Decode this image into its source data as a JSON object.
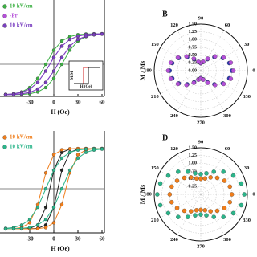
{
  "chart_data": [
    {
      "type": "line",
      "xlabel": "H (Oe)",
      "x": [
        -60,
        -50,
        -40,
        -30,
        -20,
        -10,
        0,
        10,
        20,
        30,
        40,
        50,
        60
      ],
      "xlim": [
        -67,
        63
      ],
      "ylim": [
        -1.05,
        2.1
      ],
      "xticks": [
        -30,
        0,
        30,
        60
      ],
      "series": [
        {
          "name": "10 kV/cm",
          "color": "#3cb043",
          "values": [
            -0.987,
            -0.964,
            -0.905,
            -0.762,
            -0.462,
            0,
            0.462,
            0.762,
            0.905,
            0.964,
            0.987,
            0.995,
            0.998
          ],
          "return_values": [
            -0.998,
            -0.995,
            -0.987,
            -0.964,
            -0.905,
            -0.762,
            -0.462,
            0,
            0.462,
            0.762,
            0.905,
            0.964,
            0.987
          ]
        },
        {
          "name": "-Pr",
          "color": "#b44fd8",
          "values": [
            -0.987,
            -0.967,
            -0.92,
            -0.813,
            -0.593,
            -0.223,
            0.223,
            0.593,
            0.813,
            0.92,
            0.967,
            0.987,
            0.994
          ],
          "return_values": [
            -0.994,
            -0.987,
            -0.967,
            -0.92,
            -0.813,
            -0.593,
            -0.223,
            0.223,
            0.593,
            0.813,
            0.92,
            0.967,
            0.987
          ]
        },
        {
          "name": "10 kV/cm",
          "color": "#7a3fc0",
          "values": [
            -0.987,
            -0.967,
            -0.92,
            -0.813,
            -0.593,
            -0.223,
            0.223,
            0.593,
            0.813,
            0.92,
            0.967,
            0.987,
            0.994
          ],
          "return_values": [
            -0.994,
            -0.987,
            -0.967,
            -0.92,
            -0.813,
            -0.593,
            -0.223,
            0.223,
            0.593,
            0.813,
            0.92,
            0.967,
            0.987
          ]
        }
      ],
      "inset": {
        "xlabel": "H (Oe)",
        "ylabel": "M/M"
      }
    },
    {
      "type": "polar",
      "label": "B",
      "ylabel": "M / Ms",
      "theta": [
        0,
        15,
        30,
        45,
        60,
        75,
        90,
        105,
        120,
        135,
        150,
        165,
        180,
        195,
        210,
        225,
        240,
        255,
        270,
        285,
        300,
        315,
        330,
        345
      ],
      "rlim": [
        0,
        1.5
      ],
      "rticks": [
        {
          "value": 0,
          "label": "0.00"
        },
        {
          "value": 0.25,
          "label": "0.25"
        },
        {
          "value": 0.5,
          "label": "0.50"
        },
        {
          "value": 0.75,
          "label": "0.75"
        },
        {
          "value": 1,
          "label": "1.00"
        },
        {
          "value": 1.25,
          "label": "1.25"
        },
        {
          "value": 1.5,
          "label": "1.50"
        }
      ],
      "thetaticks": [
        0,
        30,
        60,
        90,
        120,
        150,
        180,
        210,
        240,
        270,
        300,
        330
      ],
      "series": [
        {
          "color": "#2d3bb8",
          "values": [
            1.0,
            0.95,
            0.82,
            0.62,
            0.43,
            0.29,
            0.24,
            0.29,
            0.43,
            0.62,
            0.82,
            0.95,
            1.0,
            0.95,
            0.82,
            0.62,
            0.43,
            0.29,
            0.24,
            0.29,
            0.43,
            0.62,
            0.82,
            0.95
          ]
        },
        {
          "color": "#b44fd8",
          "values": [
            1.05,
            1.0,
            0.85,
            0.65,
            0.45,
            0.3,
            0.25,
            0.3,
            0.45,
            0.65,
            0.85,
            1.0,
            1.05,
            1.0,
            0.85,
            0.65,
            0.45,
            0.3,
            0.25,
            0.3,
            0.45,
            0.65,
            0.85,
            1.0
          ]
        }
      ]
    },
    {
      "type": "line",
      "xlabel": "H (Oe)",
      "x": [
        -60,
        -50,
        -40,
        -30,
        -20,
        -10,
        0,
        10,
        20,
        30,
        40,
        50,
        60
      ],
      "xlim": [
        -67,
        63
      ],
      "ylim": [
        -1.1,
        1.44
      ],
      "xticks": [
        -30,
        0,
        30,
        60
      ],
      "series": [
        {
          "color": "#222222",
          "values": [
            -1.0,
            -1.0,
            -0.998,
            -0.987,
            -0.905,
            -0.462,
            0.462,
            0.905,
            0.987,
            0.998,
            1.0,
            1.0,
            1.0
          ],
          "return_values": [
            -1.0,
            -1.0,
            -1.0,
            -0.998,
            -0.987,
            -0.905,
            -0.462,
            0.462,
            0.905,
            0.987,
            0.998,
            1.0,
            1.0
          ]
        },
        {
          "name": "10 kV/cm",
          "color": "#f07d1a",
          "values": [
            -0.999,
            -0.994,
            -0.969,
            -0.848,
            -0.394,
            0.394,
            0.848,
            0.969,
            0.994,
            0.999,
            1.0,
            1.0,
            1.0
          ],
          "return_values": [
            -1.0,
            -1.0,
            -1.0,
            -0.999,
            -0.994,
            -0.969,
            -0.848,
            -0.394,
            0.394,
            0.848,
            0.969,
            0.994,
            0.999
          ]
        },
        {
          "name": "10 kV/cm",
          "color": "#2bb58a",
          "values": [
            -0.987,
            -0.964,
            -0.905,
            -0.762,
            -0.462,
            0,
            0.462,
            0.762,
            0.905,
            0.964,
            0.987,
            0.995,
            0.998
          ],
          "return_values": [
            -0.998,
            -0.995,
            -0.987,
            -0.964,
            -0.905,
            -0.762,
            -0.462,
            0,
            0.462,
            0.762,
            0.905,
            0.964,
            0.987
          ]
        }
      ]
    },
    {
      "type": "polar",
      "label": "D",
      "ylabel": "M / Ms",
      "theta": [
        0,
        15,
        30,
        45,
        60,
        75,
        90,
        105,
        120,
        135,
        150,
        165,
        180,
        195,
        210,
        225,
        240,
        255,
        270,
        285,
        300,
        315,
        330,
        345
      ],
      "rlim": [
        0,
        1.5
      ],
      "rticks": [
        {
          "value": 0.25,
          "label": "0.25"
        },
        {
          "value": 0.5,
          "label": "0.50"
        },
        {
          "value": 0.75,
          "label": "0.75"
        },
        {
          "value": 1,
          "label": "1.00"
        },
        {
          "value": 1.25,
          "label": "1.25"
        },
        {
          "value": 1.5,
          "label": "1.50"
        }
      ],
      "thetaticks": [
        0,
        30,
        60,
        90,
        120,
        150,
        180,
        210,
        240,
        270,
        300,
        330
      ],
      "series": [
        {
          "color": "#2bb58a",
          "values": [
            1.4,
            1.35,
            1.21,
            1.03,
            0.84,
            0.7,
            0.65,
            0.7,
            0.84,
            1.03,
            1.21,
            1.35,
            1.4,
            1.35,
            1.21,
            1.03,
            0.84,
            0.7,
            0.65,
            0.7,
            0.84,
            1.03,
            1.21,
            1.35
          ]
        },
        {
          "color": "#f07d1a",
          "values": [
            1.0,
            0.97,
            0.88,
            0.75,
            0.63,
            0.53,
            0.5,
            0.53,
            0.63,
            0.75,
            0.88,
            0.97,
            1.0,
            0.97,
            0.88,
            0.75,
            0.63,
            0.53,
            0.5,
            0.53,
            0.63,
            0.75,
            0.88,
            0.97
          ]
        }
      ]
    }
  ]
}
